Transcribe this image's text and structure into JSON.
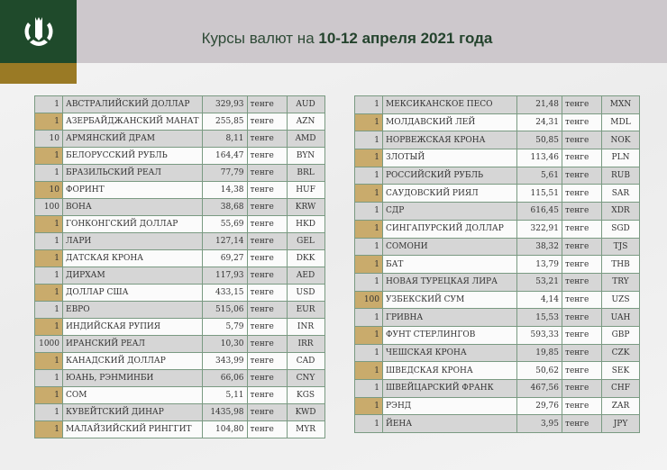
{
  "header": {
    "title_prefix": "Курсы валют на ",
    "title_bold": "10-12 апреля 2021 года",
    "logo": "national-bank-logo",
    "colors": {
      "green": "#1f4a2b",
      "gold": "#9a7a25"
    }
  },
  "unit": "тенге",
  "left_table": [
    {
      "qty": "1",
      "name": "АВСТРАЛИЙСКИЙ ДОЛЛАР",
      "rate": "329,93",
      "code": "AUD"
    },
    {
      "qty": "1",
      "name": "АЗЕРБАЙДЖАНСКИЙ МАНАТ",
      "rate": "255,85",
      "code": "AZN"
    },
    {
      "qty": "10",
      "name": "АРМЯНСКИЙ  ДРАМ",
      "rate": "8,11",
      "code": "AMD"
    },
    {
      "qty": "1",
      "name": "БЕЛОРУССКИЙ РУБЛЬ",
      "rate": "164,47",
      "code": "BYN"
    },
    {
      "qty": "1",
      "name": "БРАЗИЛЬСКИЙ РЕАЛ",
      "rate": "77,79",
      "code": "BRL"
    },
    {
      "qty": "10",
      "name": "ФОРИНТ",
      "rate": "14,38",
      "code": "HUF"
    },
    {
      "qty": "100",
      "name": "ВОНА",
      "rate": "38,68",
      "code": "KRW"
    },
    {
      "qty": "1",
      "name": "ГОНКОНГСКИЙ ДОЛЛАР",
      "rate": "55,69",
      "code": "HKD"
    },
    {
      "qty": "1",
      "name": "ЛАРИ",
      "rate": "127,14",
      "code": "GEL"
    },
    {
      "qty": "1",
      "name": "ДАТСКАЯ КРОНА",
      "rate": "69,27",
      "code": "DKK"
    },
    {
      "qty": "1",
      "name": "ДИРХАМ",
      "rate": "117,93",
      "code": "AED"
    },
    {
      "qty": "1",
      "name": "ДОЛЛАР США",
      "rate": "433,15",
      "code": "USD"
    },
    {
      "qty": "1",
      "name": "ЕВРО",
      "rate": "515,06",
      "code": "EUR"
    },
    {
      "qty": "1",
      "name": "ИНДИЙСКАЯ РУПИЯ",
      "rate": "5,79",
      "code": "INR"
    },
    {
      "qty": "1000",
      "name": "ИРАНСКИЙ РЕАЛ",
      "rate": "10,30",
      "code": "IRR"
    },
    {
      "qty": "1",
      "name": "КАНАДСКИЙ ДОЛЛАР",
      "rate": "343,99",
      "code": "CAD"
    },
    {
      "qty": "1",
      "name": "ЮАНЬ, РЭНМИНБИ",
      "rate": "66,06",
      "code": "CNY"
    },
    {
      "qty": "1",
      "name": "СОМ",
      "rate": "5,11",
      "code": "KGS"
    },
    {
      "qty": "1",
      "name": "КУВЕЙТСКИЙ ДИНАР",
      "rate": "1435,98",
      "code": "KWD"
    },
    {
      "qty": "1",
      "name": "МАЛАЙЗИЙСКИЙ РИНГГИТ",
      "rate": "104,80",
      "code": "MYR"
    }
  ],
  "right_table": [
    {
      "qty": "1",
      "name": "МЕКСИКАНСКОЕ ПЕСО",
      "rate": "21,48",
      "code": "MXN"
    },
    {
      "qty": "1",
      "name": "МОЛДАВСКИЙ ЛЕЙ",
      "rate": "24,31",
      "code": "MDL"
    },
    {
      "qty": "1",
      "name": "НОРВЕЖСКАЯ КРОНА",
      "rate": "50,85",
      "code": "NOK"
    },
    {
      "qty": "1",
      "name": "ЗЛОТЫЙ",
      "rate": "113,46",
      "code": "PLN"
    },
    {
      "qty": "1",
      "name": "РОССИЙСКИЙ РУБЛЬ",
      "rate": "5,61",
      "code": "RUB"
    },
    {
      "qty": "1",
      "name": "САУДОВСКИЙ РИЯЛ",
      "rate": "115,51",
      "code": "SAR"
    },
    {
      "qty": "1",
      "name": "СДР",
      "rate": "616,45",
      "code": "XDR"
    },
    {
      "qty": "1",
      "name": "СИНГАПУРСКИЙ ДОЛЛАР",
      "rate": "322,91",
      "code": "SGD"
    },
    {
      "qty": "1",
      "name": "СОМОНИ",
      "rate": "38,32",
      "code": "TJS"
    },
    {
      "qty": "1",
      "name": "БАТ",
      "rate": "13,79",
      "code": "THB"
    },
    {
      "qty": "1",
      "name": "НОВАЯ ТУРЕЦКАЯ ЛИРА",
      "rate": "53,21",
      "code": "TRY"
    },
    {
      "qty": "100",
      "name": "УЗБЕКСКИЙ СУМ",
      "rate": "4,14",
      "code": "UZS"
    },
    {
      "qty": "1",
      "name": "ГРИВНА",
      "rate": "15,53",
      "code": "UAH"
    },
    {
      "qty": "1",
      "name": "ФУНТ СТЕРЛИНГОВ",
      "rate": "593,33",
      "code": "GBP"
    },
    {
      "qty": "1",
      "name": "ЧЕШСКАЯ КРОНА",
      "rate": "19,85",
      "code": "CZK"
    },
    {
      "qty": "1",
      "name": "ШВЕДСКАЯ КРОНА",
      "rate": "50,62",
      "code": "SEK"
    },
    {
      "qty": "1",
      "name": "ШВЕЙЦАРСКИЙ ФРАНК",
      "rate": "467,56",
      "code": "CHF"
    },
    {
      "qty": "1",
      "name": "РЭНД",
      "rate": "29,76",
      "code": "ZAR"
    },
    {
      "qty": "1",
      "name": "ЙЕНА",
      "rate": "3,95",
      "code": "JPY"
    }
  ]
}
